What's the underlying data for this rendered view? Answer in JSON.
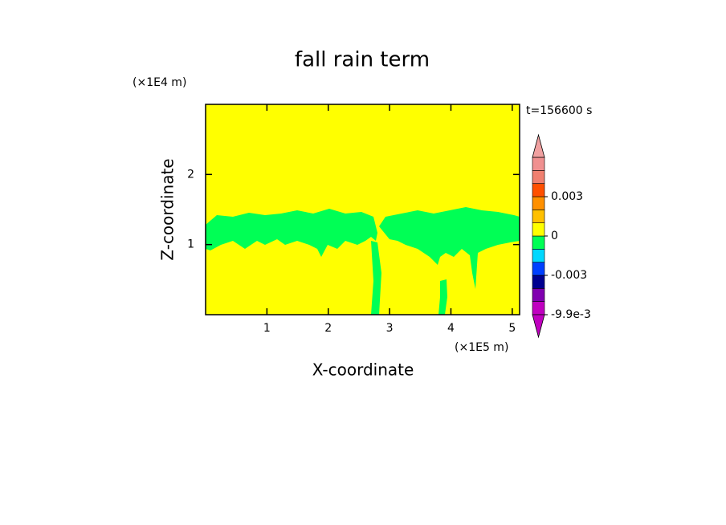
{
  "chart_data": {
    "type": "contour",
    "title": "fall rain term",
    "x_label": "X-coordinate",
    "y_label": "Z-coordinate",
    "x_unit": "(×1E5 m)",
    "y_unit": "(×1E4 m)",
    "time_label": "t=156600 s",
    "xlim": [
      0,
      5.12
    ],
    "xticks": [
      1,
      2,
      3,
      4,
      5
    ],
    "ylim": [
      0,
      3
    ],
    "yticks": [
      1,
      2
    ],
    "background_color": "#ffff00",
    "field_color": "#00ff55",
    "colorbar": {
      "levels": [
        -0.0099,
        -0.007,
        -0.004,
        -0.003,
        -0.002,
        -0.001,
        0,
        0.001,
        0.002,
        0.003,
        0.004,
        0.005,
        0.006
      ],
      "colors": [
        "#c000c0",
        "#8000b0",
        "#000090",
        "#0040ff",
        "#00d8ff",
        "#00ff55",
        "#ffff00",
        "#ffc000",
        "#ff9000",
        "#ff5000",
        "#f08070",
        "#f09090"
      ],
      "under_color": "#c000c0",
      "over_color": "#f0a0a0",
      "ticks": [
        {
          "value": -0.0099,
          "label": "-9.9e-3"
        },
        {
          "value": -0.003,
          "label": "-0.003"
        },
        0,
        0.003
      ]
    }
  }
}
